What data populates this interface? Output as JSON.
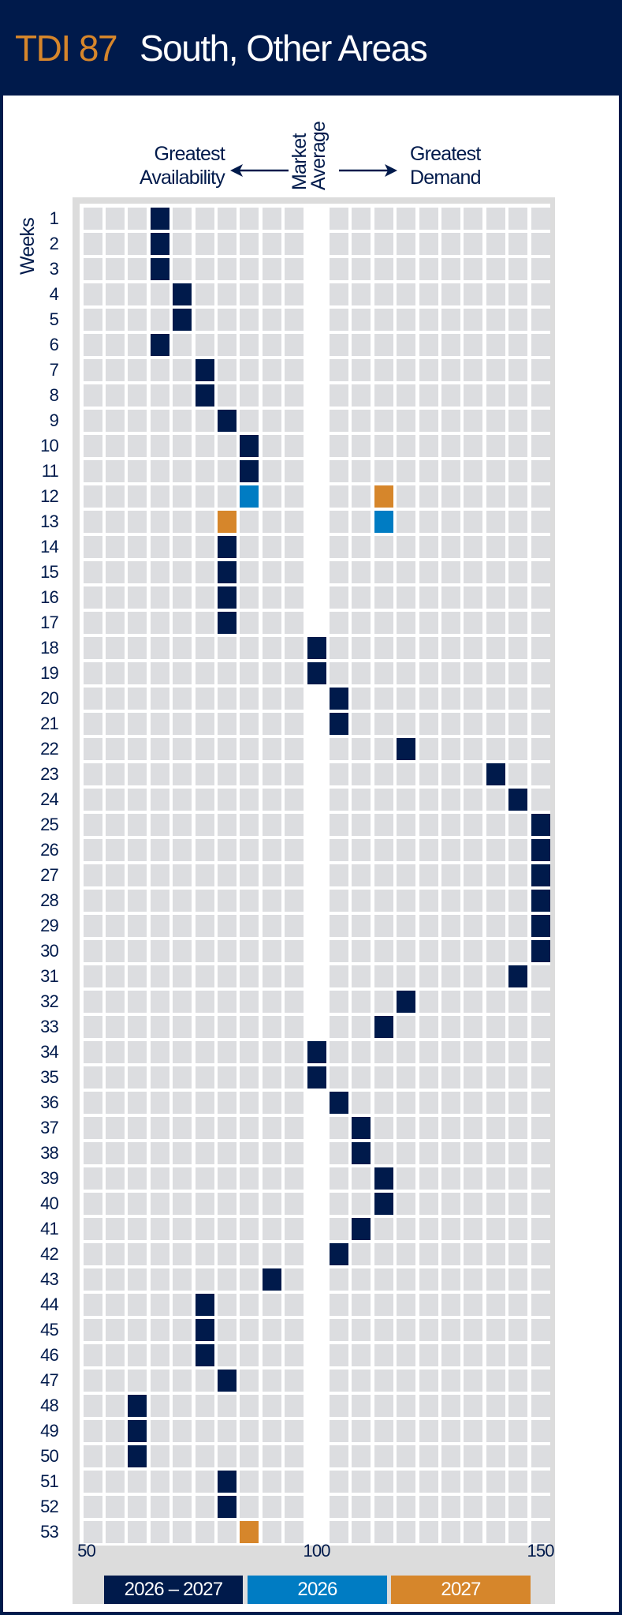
{
  "header": {
    "code": "TDI 87",
    "title": "South, Other Areas"
  },
  "labels": {
    "left_line1": "Greatest",
    "left_line2": "Availability",
    "mid_line1": "Market",
    "mid_line2": "Average",
    "right_line1": "Greatest",
    "right_line2": "Demand",
    "weeks": "Weeks"
  },
  "colors": {
    "2026 – 2027": "#001a4b",
    "2026": "#007cc3",
    "2027": "#d6862b",
    "cell": "#dcdde0",
    "accent": "#d6862b"
  },
  "chart_data": {
    "type": "heatmap",
    "ylabel": "Weeks",
    "x_ticks": [
      "50",
      "100",
      "150"
    ],
    "xlim": [
      50,
      150
    ],
    "x_step": 5,
    "market_average": 100,
    "weeks": [
      1,
      2,
      3,
      4,
      5,
      6,
      7,
      8,
      9,
      10,
      11,
      12,
      13,
      14,
      15,
      16,
      17,
      18,
      19,
      20,
      21,
      22,
      23,
      24,
      25,
      26,
      27,
      28,
      29,
      30,
      31,
      32,
      33,
      34,
      35,
      36,
      37,
      38,
      39,
      40,
      41,
      42,
      43,
      44,
      45,
      46,
      47,
      48,
      49,
      50,
      51,
      52,
      53
    ],
    "series": [
      {
        "name": "2026 – 2027",
        "values": [
          65,
          65,
          65,
          70,
          70,
          65,
          75,
          75,
          80,
          85,
          85,
          null,
          null,
          80,
          80,
          80,
          80,
          100,
          100,
          105,
          105,
          120,
          140,
          145,
          150,
          150,
          150,
          150,
          150,
          150,
          145,
          120,
          115,
          100,
          100,
          105,
          110,
          110,
          115,
          115,
          110,
          105,
          90,
          75,
          75,
          75,
          80,
          60,
          60,
          60,
          80,
          80,
          null
        ]
      },
      {
        "name": "2026",
        "values": [
          null,
          null,
          null,
          null,
          null,
          null,
          null,
          null,
          null,
          null,
          null,
          85,
          115,
          null,
          null,
          null,
          null,
          null,
          null,
          null,
          null,
          null,
          null,
          null,
          null,
          null,
          null,
          null,
          null,
          null,
          null,
          null,
          null,
          null,
          null,
          null,
          null,
          null,
          null,
          null,
          null,
          null,
          null,
          null,
          null,
          null,
          null,
          null,
          null,
          null,
          null,
          null,
          null
        ]
      },
      {
        "name": "2027",
        "values": [
          null,
          null,
          null,
          null,
          null,
          null,
          null,
          null,
          null,
          null,
          null,
          115,
          80,
          null,
          null,
          null,
          null,
          null,
          null,
          null,
          null,
          null,
          null,
          null,
          null,
          null,
          null,
          null,
          null,
          null,
          null,
          null,
          null,
          null,
          null,
          null,
          null,
          null,
          null,
          null,
          null,
          null,
          null,
          null,
          null,
          null,
          null,
          null,
          null,
          null,
          null,
          null,
          85
        ]
      }
    ],
    "legend": [
      "2026 – 2027",
      "2026",
      "2027"
    ],
    "legend_position": "bottom"
  }
}
